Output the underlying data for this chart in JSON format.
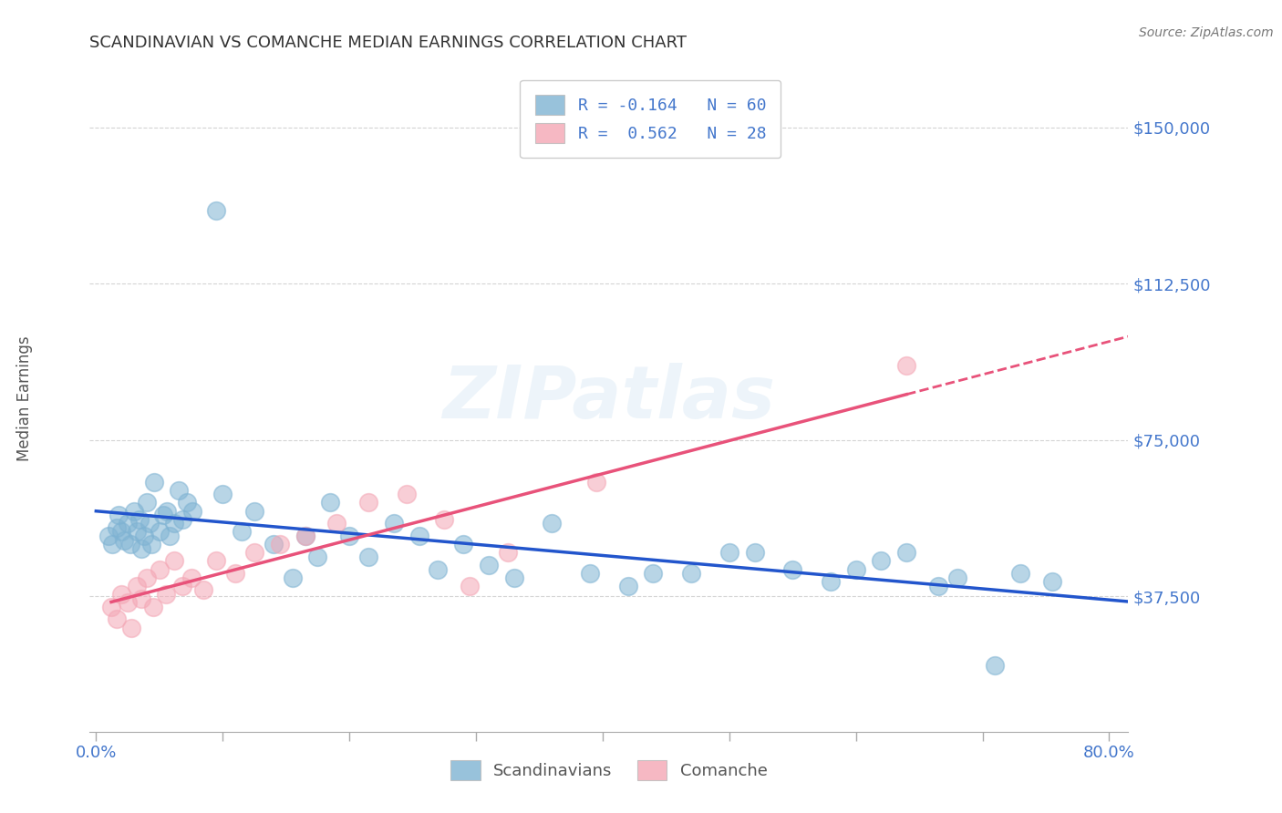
{
  "title": "SCANDINAVIAN VS COMANCHE MEDIAN EARNINGS CORRELATION CHART",
  "source": "Source: ZipAtlas.com",
  "ylabel": "Median Earnings",
  "xlim": [
    -0.005,
    0.815
  ],
  "ylim": [
    5000,
    165000
  ],
  "yticks": [
    37500,
    75000,
    112500,
    150000
  ],
  "ytick_labels": [
    "$37,500",
    "$75,000",
    "$112,500",
    "$150,000"
  ],
  "xtick_vals": [
    0.0,
    0.1,
    0.2,
    0.3,
    0.4,
    0.5,
    0.6,
    0.7,
    0.8
  ],
  "xtick_labels": [
    "0.0%",
    "",
    "",
    "",
    "",
    "",
    "",
    "",
    "80.0%"
  ],
  "background_color": "#ffffff",
  "grid_color": "#d0d0d0",
  "blue_color": "#7fb3d3",
  "pink_color": "#f4a7b5",
  "trend_blue_color": "#2255cc",
  "trend_pink_color": "#e8527a",
  "axis_label_color": "#4477cc",
  "title_color": "#333333",
  "ylabel_color": "#555555",
  "source_color": "#777777",
  "legend_label_scandinavians": "Scandinavians",
  "legend_label_comanche": "Comanche",
  "watermark_text": "ZIPatlas",
  "scand_x": [
    0.01,
    0.013,
    0.016,
    0.018,
    0.02,
    0.022,
    0.025,
    0.027,
    0.03,
    0.032,
    0.034,
    0.036,
    0.038,
    0.04,
    0.042,
    0.044,
    0.046,
    0.05,
    0.053,
    0.056,
    0.058,
    0.062,
    0.065,
    0.068,
    0.072,
    0.076,
    0.095,
    0.1,
    0.115,
    0.125,
    0.14,
    0.155,
    0.165,
    0.175,
    0.185,
    0.2,
    0.215,
    0.235,
    0.255,
    0.27,
    0.29,
    0.31,
    0.33,
    0.36,
    0.39,
    0.42,
    0.44,
    0.47,
    0.5,
    0.52,
    0.55,
    0.58,
    0.6,
    0.62,
    0.64,
    0.665,
    0.68,
    0.71,
    0.73,
    0.755
  ],
  "scand_y": [
    52000,
    50000,
    54000,
    57000,
    53000,
    51000,
    55000,
    50000,
    58000,
    53000,
    56000,
    49000,
    52000,
    60000,
    55000,
    50000,
    65000,
    53000,
    57000,
    58000,
    52000,
    55000,
    63000,
    56000,
    60000,
    58000,
    130000,
    62000,
    53000,
    58000,
    50000,
    42000,
    52000,
    47000,
    60000,
    52000,
    47000,
    55000,
    52000,
    44000,
    50000,
    45000,
    42000,
    55000,
    43000,
    40000,
    43000,
    43000,
    48000,
    48000,
    44000,
    41000,
    44000,
    46000,
    48000,
    40000,
    42000,
    21000,
    43000,
    41000
  ],
  "comanche_x": [
    0.012,
    0.016,
    0.02,
    0.025,
    0.028,
    0.032,
    0.036,
    0.04,
    0.045,
    0.05,
    0.055,
    0.062,
    0.068,
    0.075,
    0.085,
    0.095,
    0.11,
    0.125,
    0.145,
    0.165,
    0.19,
    0.215,
    0.245,
    0.275,
    0.295,
    0.325,
    0.395,
    0.64
  ],
  "comanche_y": [
    35000,
    32000,
    38000,
    36000,
    30000,
    40000,
    37000,
    42000,
    35000,
    44000,
    38000,
    46000,
    40000,
    42000,
    39000,
    46000,
    43000,
    48000,
    50000,
    52000,
    55000,
    60000,
    62000,
    56000,
    40000,
    48000,
    65000,
    93000
  ],
  "trend_x_extend_to": 0.82
}
